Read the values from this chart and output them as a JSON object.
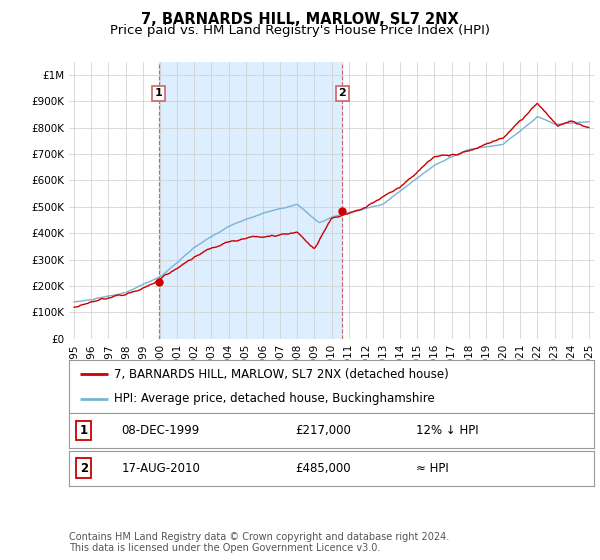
{
  "title": "7, BARNARDS HILL, MARLOW, SL7 2NX",
  "subtitle": "Price paid vs. HM Land Registry's House Price Index (HPI)",
  "ylim": [
    0,
    1050000
  ],
  "xlim_start": 1994.7,
  "xlim_end": 2025.3,
  "yticks": [
    0,
    100000,
    200000,
    300000,
    400000,
    500000,
    600000,
    700000,
    800000,
    900000,
    1000000
  ],
  "ytick_labels": [
    "£0",
    "£100K",
    "£200K",
    "£300K",
    "£400K",
    "£500K",
    "£600K",
    "£700K",
    "£800K",
    "£900K",
    "£1M"
  ],
  "sale1_year": 1999.92,
  "sale1_price": 217000,
  "sale1_label": "1",
  "sale1_date": "08-DEC-1999",
  "sale1_note": "12% ↓ HPI",
  "sale2_year": 2010.63,
  "sale2_price": 485000,
  "sale2_label": "2",
  "sale2_date": "17-AUG-2010",
  "sale2_note": "≈ HPI",
  "red_line_color": "#cc0000",
  "blue_line_color": "#7ab3d4",
  "shade_color": "#ddeeff",
  "grid_color": "#cccccc",
  "dashed_line_color": "#cc6666",
  "background_color": "#ffffff",
  "legend_label_red": "7, BARNARDS HILL, MARLOW, SL7 2NX (detached house)",
  "legend_label_blue": "HPI: Average price, detached house, Buckinghamshire",
  "footnote": "Contains HM Land Registry data © Crown copyright and database right 2024.\nThis data is licensed under the Open Government Licence v3.0.",
  "title_fontsize": 10.5,
  "subtitle_fontsize": 9.5,
  "tick_fontsize": 7.5,
  "legend_fontsize": 8.5,
  "table_fontsize": 8.5,
  "footnote_fontsize": 7.0
}
